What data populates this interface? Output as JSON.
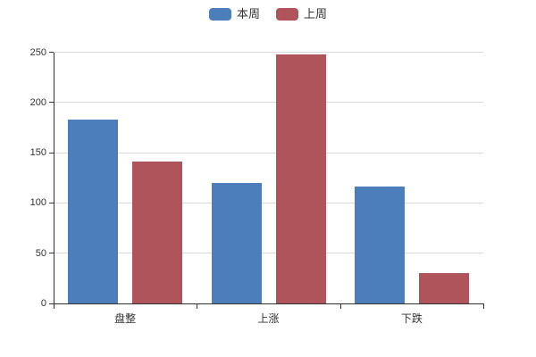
{
  "legend": {
    "items": [
      {
        "label": "本周",
        "color": "#4d7ebc"
      },
      {
        "label": "上周",
        "color": "#b0545c"
      }
    ]
  },
  "chart_data": {
    "type": "bar",
    "categories": [
      "盘整",
      "上涨",
      "下跌"
    ],
    "series": [
      {
        "name": "本周",
        "color": "#4d7ebc",
        "values": [
          183,
          120,
          116
        ]
      },
      {
        "name": "上周",
        "color": "#b0545c",
        "values": [
          141,
          248,
          30
        ]
      }
    ],
    "title": "",
    "xlabel": "",
    "ylabel": "",
    "ylim": [
      0,
      250
    ],
    "yticks": [
      0,
      50,
      100,
      150,
      200,
      250
    ],
    "grid": "horizontal",
    "legend_position": "top-center",
    "colors": {
      "grid": "#d9d9d9",
      "axis": "#333333",
      "text": "#333333",
      "background": "#ffffff"
    }
  }
}
